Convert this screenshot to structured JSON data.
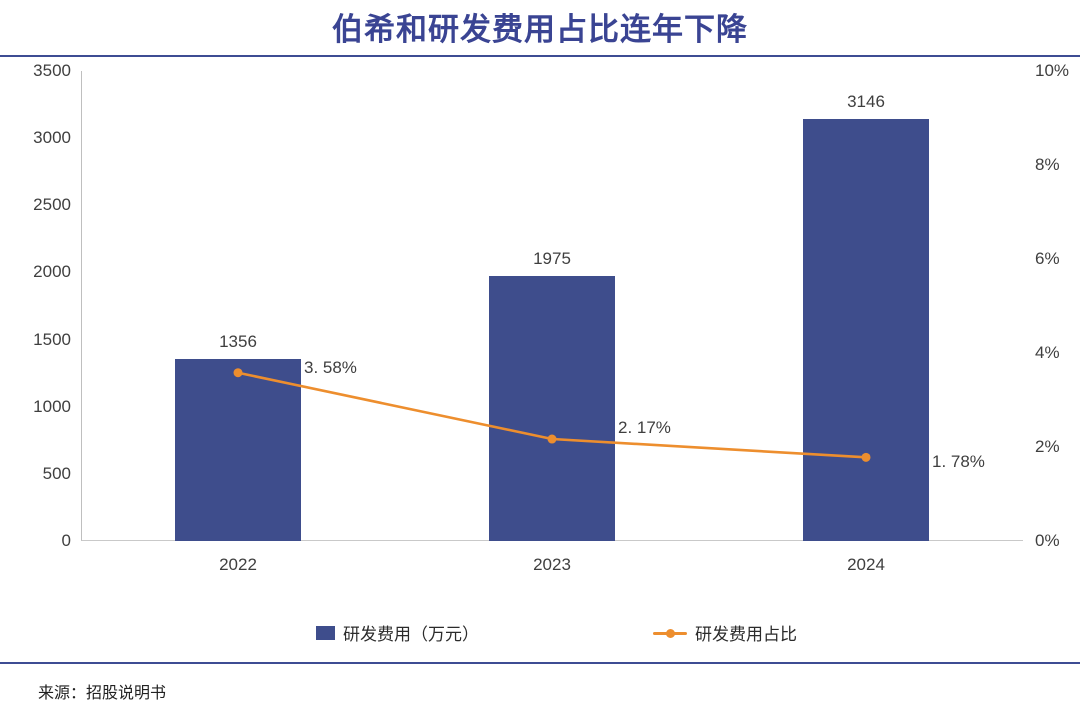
{
  "title": "伯希和研发费用占比连年下降",
  "source": "来源：招股说明书",
  "colors": {
    "bar": "#3E4D8C",
    "line": "#ED8E2E",
    "title": "#3A4493",
    "rule": "#3E4C93",
    "axis_line": "#BFBFBF",
    "text": "#3F3F3F"
  },
  "chart_data": {
    "type": "bar",
    "subtype": "combo bar+line, dual axis",
    "title": "伯希和研发费用占比连年下降",
    "categories": [
      "2022",
      "2023",
      "2024"
    ],
    "series": [
      {
        "name": "研发费用（万元）",
        "type": "bar",
        "axis": "left",
        "values": [
          1356,
          1975,
          3146
        ],
        "labels": [
          "1356",
          "1975",
          "3146"
        ]
      },
      {
        "name": "研发费用占比",
        "type": "line",
        "axis": "right",
        "values": [
          3.58,
          2.17,
          1.78
        ],
        "labels": [
          "3. 58%",
          "2. 17%",
          "1. 78%"
        ]
      }
    ],
    "left_axis": {
      "min": 0,
      "max": 3500,
      "step": 500,
      "ticks": [
        "3500",
        "3000",
        "2500",
        "2000",
        "1500",
        "1000",
        "500",
        "0"
      ]
    },
    "right_axis": {
      "min": 0,
      "max": 10,
      "step": 2,
      "ticks": [
        "10%",
        "8%",
        "6%",
        "4%",
        "2%",
        "0%"
      ]
    },
    "grid": false,
    "legend_position": "bottom"
  }
}
